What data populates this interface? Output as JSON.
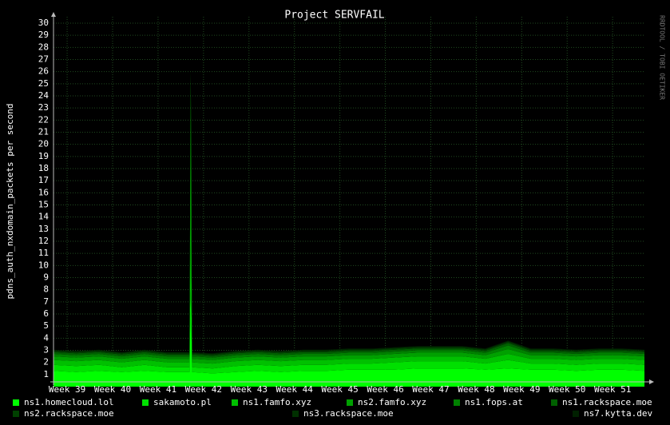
{
  "chart_data": {
    "type": "stacked-area",
    "title": "Project SERVFAIL",
    "y_label": "pdns_auth_nxdomain_packets per second",
    "watermark": "RRDTOOL / TOBI OETIKER",
    "x": [
      38.7,
      39.2,
      39.7,
      40.2,
      40.7,
      41.2,
      41.69,
      41.72,
      41.75,
      42.2,
      42.7,
      43.2,
      43.7,
      44.2,
      44.7,
      45.2,
      45.7,
      46.2,
      46.7,
      47.2,
      47.7,
      48.2,
      48.7,
      49.2,
      49.7,
      50.2,
      50.7,
      51.2,
      51.7
    ],
    "xlim": [
      38.7,
      51.7
    ],
    "xticks": [
      {
        "value": 39,
        "label": "Week 39"
      },
      {
        "value": 40,
        "label": "Week 40"
      },
      {
        "value": 41,
        "label": "Week 41"
      },
      {
        "value": 42,
        "label": "Week 42"
      },
      {
        "value": 43,
        "label": "Week 43"
      },
      {
        "value": 44,
        "label": "Week 44"
      },
      {
        "value": 45,
        "label": "Week 45"
      },
      {
        "value": 46,
        "label": "Week 46"
      },
      {
        "value": 47,
        "label": "Week 47"
      },
      {
        "value": 48,
        "label": "Week 48"
      },
      {
        "value": 49,
        "label": "Week 49"
      },
      {
        "value": 50,
        "label": "Week 50"
      },
      {
        "value": 51,
        "label": "Week 51"
      }
    ],
    "ylim": [
      0,
      30
    ],
    "yticks": [
      1,
      2,
      3,
      4,
      5,
      6,
      7,
      8,
      9,
      10,
      11,
      12,
      13,
      14,
      15,
      16,
      17,
      18,
      19,
      20,
      21,
      22,
      23,
      24,
      25,
      26,
      27,
      28,
      29,
      30
    ],
    "grid": true,
    "series": [
      {
        "name": "ns1.homecloud.lol",
        "color": "#00ff00",
        "values": [
          1.3,
          1.2,
          1.3,
          1.2,
          1.3,
          1.2,
          1.2,
          8,
          1.2,
          1.1,
          1.2,
          1.3,
          1.2,
          1.3,
          1.3,
          1.4,
          1.4,
          1.4,
          1.5,
          1.5,
          1.5,
          1.4,
          1.5,
          1.4,
          1.4,
          1.3,
          1.4,
          1.4,
          1.3
        ]
      },
      {
        "name": "sakamoto.pl",
        "color": "#00e000",
        "values": [
          0.5,
          0.5,
          0.5,
          0.4,
          0.5,
          0.4,
          0.4,
          4,
          0.4,
          0.4,
          0.5,
          0.5,
          0.5,
          0.5,
          0.5,
          0.5,
          0.5,
          0.6,
          0.6,
          0.6,
          0.6,
          0.5,
          0.7,
          0.5,
          0.5,
          0.5,
          0.5,
          0.5,
          0.5
        ]
      },
      {
        "name": "ns1.famfo.xyz",
        "color": "#00c000",
        "values": [
          0.4,
          0.4,
          0.4,
          0.4,
          0.4,
          0.4,
          0.4,
          2.7,
          0.4,
          0.4,
          0.4,
          0.4,
          0.4,
          0.4,
          0.4,
          0.4,
          0.4,
          0.4,
          0.4,
          0.4,
          0.4,
          0.4,
          0.5,
          0.4,
          0.4,
          0.4,
          0.4,
          0.4,
          0.4
        ]
      },
      {
        "name": "ns2.famfo.xyz",
        "color": "#00a000",
        "values": [
          0.3,
          0.3,
          0.3,
          0.3,
          0.3,
          0.3,
          0.3,
          11.3,
          0.3,
          0.3,
          0.3,
          0.3,
          0.3,
          0.3,
          0.3,
          0.3,
          0.3,
          0.3,
          0.3,
          0.3,
          0.3,
          0.3,
          0.4,
          0.3,
          0.3,
          0.3,
          0.3,
          0.3,
          0.3
        ]
      },
      {
        "name": "ns1.fops.at",
        "color": "#008000",
        "values": [
          0.2,
          0.2,
          0.2,
          0.2,
          0.2,
          0.2,
          0.2,
          0,
          0.2,
          0.2,
          0.2,
          0.2,
          0.2,
          0.2,
          0.2,
          0.2,
          0.2,
          0.2,
          0.2,
          0.2,
          0.2,
          0.2,
          0.3,
          0.2,
          0.2,
          0.2,
          0.2,
          0.2,
          0.2
        ]
      },
      {
        "name": "ns1.rackspace.moe",
        "color": "#006000",
        "values": [
          0.15,
          0.15,
          0.15,
          0.15,
          0.15,
          0.15,
          0.15,
          0,
          0.15,
          0.15,
          0.15,
          0.15,
          0.15,
          0.15,
          0.15,
          0.15,
          0.15,
          0.15,
          0.15,
          0.15,
          0.15,
          0.15,
          0.2,
          0.15,
          0.15,
          0.15,
          0.15,
          0.15,
          0.15
        ]
      },
      {
        "name": "ns2.rackspace.moe",
        "color": "#004000",
        "values": [
          0.1,
          0.1,
          0.1,
          0.1,
          0.1,
          0.1,
          0.1,
          0,
          0.1,
          0.1,
          0.1,
          0.1,
          0.1,
          0.1,
          0.1,
          0.1,
          0.1,
          0.1,
          0.1,
          0.1,
          0.1,
          0.1,
          0.1,
          0.1,
          0.1,
          0.1,
          0.1,
          0.1,
          0.1
        ]
      },
      {
        "name": "ns3.rackspace.moe",
        "color": "#003000",
        "values": [
          0.05,
          0.05,
          0.05,
          0.05,
          0.05,
          0.05,
          0.05,
          0,
          0.05,
          0.05,
          0.05,
          0.05,
          0.05,
          0.05,
          0.05,
          0.05,
          0.05,
          0.05,
          0.05,
          0.05,
          0.05,
          0.05,
          0.05,
          0.05,
          0.05,
          0.05,
          0.05,
          0.05,
          0.05
        ]
      },
      {
        "name": "ns7.kytta.dev",
        "color": "#002000",
        "values": [
          0.05,
          0.05,
          0.05,
          0.05,
          0.05,
          0.05,
          0.05,
          0,
          0.05,
          0.05,
          0.05,
          0.05,
          0.05,
          0.05,
          0.05,
          0.05,
          0.05,
          0.05,
          0.05,
          0.05,
          0.05,
          0.05,
          0.05,
          0.05,
          0.05,
          0.05,
          0.05,
          0.05,
          0.05
        ]
      }
    ]
  }
}
